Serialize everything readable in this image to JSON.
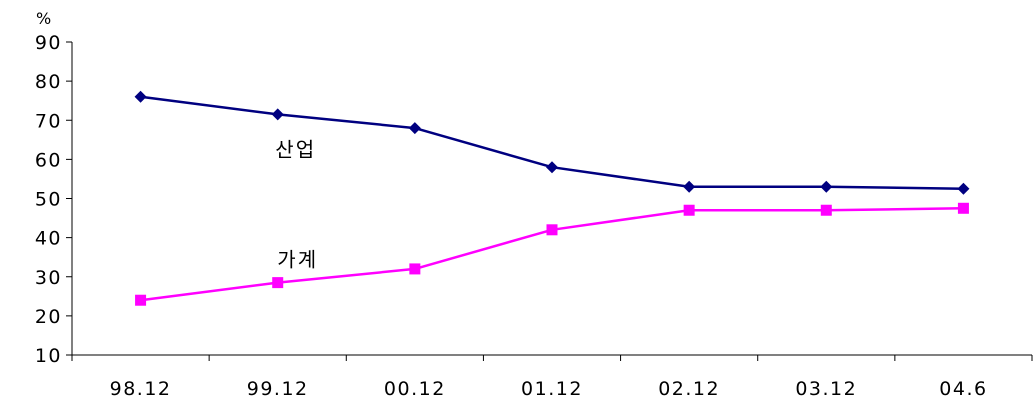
{
  "chart_data": {
    "type": "line",
    "title": "",
    "xlabel": "",
    "ylabel": "%",
    "ylim": [
      10,
      90
    ],
    "yticks": [
      10,
      20,
      30,
      40,
      50,
      60,
      70,
      80,
      90
    ],
    "categories": [
      "98.12",
      "99.12",
      "00.12",
      "01.12",
      "02.12",
      "03.12",
      "04.6"
    ],
    "grid": false,
    "legend": "none",
    "series": [
      {
        "name": "산업",
        "color": "#000080",
        "marker": "diamond",
        "values": [
          76,
          71.5,
          68,
          58,
          53,
          53,
          52.5
        ]
      },
      {
        "name": "가계",
        "color": "#ff00ff",
        "marker": "square",
        "values": [
          24,
          28.5,
          32,
          42,
          47,
          47,
          47.5
        ]
      }
    ]
  }
}
